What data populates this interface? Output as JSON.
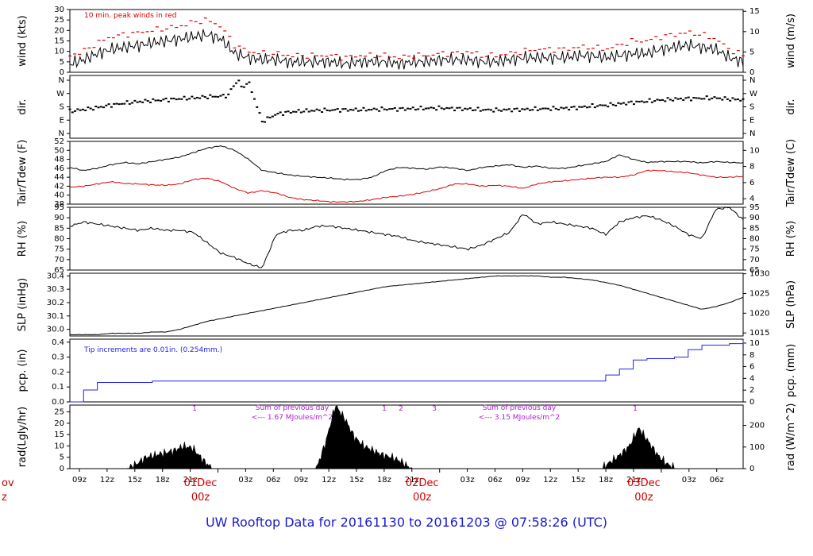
{
  "page": {
    "title": "UW Rooftop Data for 20161130  to  20161203 @ 07:58:26  (UTC)"
  },
  "colors": {
    "black": "#000000",
    "red": "#dd0000",
    "blue": "#2222ee",
    "purple": "#aa22cc",
    "day_red": "#cc0000"
  },
  "x_axis": {
    "hours_tick_labels": [
      "09z",
      "12z",
      "15z",
      "18z",
      "21z",
      "03z",
      "06z",
      "09z",
      "12z",
      "15z",
      "18z",
      "21z",
      "03z",
      "06z",
      "09z",
      "12z",
      "15z",
      "18z",
      "21z",
      "03z",
      "06z"
    ],
    "day_labels": [
      {
        "day": "01Dec",
        "hour": "00z"
      },
      {
        "day": "02Dec",
        "hour": "00z"
      },
      {
        "day": "03Dec",
        "hour": "00z"
      }
    ],
    "cut_left": {
      "day": "ov",
      "hour": "z"
    }
  },
  "chart_data": [
    {
      "type": "line",
      "ylabel": "wind (kts)",
      "ylabel_right": "wind (m/s)",
      "ylim": [
        0,
        30
      ],
      "yticks": [
        0,
        5,
        10,
        15,
        20,
        25,
        30
      ],
      "yticks_right": [
        0,
        5,
        10,
        15
      ],
      "annotation": "10 min. peak winds in red",
      "series": [
        {
          "values": [
            4,
            6,
            9,
            11,
            12,
            13,
            14,
            15,
            16,
            17,
            18,
            16,
            9,
            7,
            6,
            6,
            5,
            5,
            5,
            5,
            4,
            5,
            5,
            5,
            4,
            5,
            5,
            6,
            6,
            6,
            5,
            5,
            6,
            7,
            7,
            7,
            7,
            8,
            8,
            7,
            8,
            9,
            9,
            11,
            12,
            13,
            12,
            11,
            7,
            5
          ]
        },
        {
          "values": [
            8,
            10,
            14,
            17,
            18,
            19,
            20,
            21,
            22,
            24,
            25,
            22,
            13,
            10,
            9,
            9,
            8,
            8,
            8,
            8,
            7,
            8,
            8,
            8,
            7,
            8,
            8,
            9,
            9,
            10,
            8,
            8,
            9,
            10,
            11,
            11,
            11,
            12,
            12,
            11,
            13,
            15,
            15,
            17,
            18,
            19,
            18,
            16,
            11,
            8
          ]
        }
      ]
    },
    {
      "type": "scatter",
      "ylabel": "dir.",
      "ylabel_right": "dir.",
      "yticks": [
        "N",
        "W",
        "S",
        "E",
        "N"
      ],
      "yticks_right": [
        "N",
        "W",
        "S",
        "E",
        "N"
      ],
      "series": [
        {
          "values": [
            150,
            162,
            175,
            192,
            205,
            215,
            222,
            228,
            235,
            240,
            248,
            252,
            265,
            350,
            80,
            130,
            145,
            152,
            156,
            158,
            160,
            160,
            162,
            165,
            165,
            168,
            170,
            172,
            168,
            165,
            160,
            158,
            160,
            162,
            165,
            168,
            170,
            175,
            185,
            190,
            200,
            210,
            218,
            225,
            232,
            236,
            238,
            240,
            232,
            228
          ]
        }
      ]
    },
    {
      "type": "line",
      "ylabel": "Tair/Tdew (F)",
      "ylabel_right": "Tair/Tdew (C)",
      "ylim": [
        38,
        52
      ],
      "yticks": [
        38,
        40,
        42,
        44,
        46,
        48,
        50,
        52
      ],
      "yticks_right": [
        4,
        6,
        8,
        10
      ],
      "series": [
        {
          "values": [
            46.2,
            45.5,
            46.0,
            46.8,
            47.3,
            47.0,
            47.5,
            48.0,
            48.5,
            49.5,
            50.5,
            51.0,
            50.0,
            48.0,
            45.5,
            45.0,
            44.5,
            44.2,
            44.0,
            43.8,
            43.5,
            43.5,
            44.0,
            45.5,
            46.2,
            46.0,
            45.8,
            46.3,
            46.0,
            45.5,
            46.2,
            46.5,
            46.8,
            46.2,
            46.5,
            46.0,
            46.0,
            46.5,
            47.0,
            47.5,
            49.0,
            48.0,
            47.3,
            47.5,
            47.5,
            47.5,
            47.2,
            47.5,
            47.3,
            47.2
          ]
        },
        {
          "values": [
            41.8,
            42.0,
            42.5,
            43.0,
            42.6,
            42.5,
            42.3,
            42.2,
            42.5,
            43.5,
            43.8,
            43.0,
            41.5,
            40.5,
            41.0,
            40.5,
            39.5,
            39.0,
            38.8,
            38.5,
            38.5,
            38.6,
            39.0,
            39.5,
            39.8,
            40.2,
            40.8,
            41.5,
            42.5,
            42.5,
            42.0,
            42.2,
            42.0,
            41.5,
            42.5,
            43.0,
            43.2,
            43.5,
            43.8,
            44.0,
            44.0,
            44.5,
            45.5,
            45.5,
            45.2,
            45.0,
            44.5,
            44.0,
            44.0,
            44.2
          ]
        }
      ]
    },
    {
      "type": "line",
      "ylabel": "RH (%)",
      "ylabel_right": "RH (%)",
      "ylim": [
        65,
        95
      ],
      "yticks": [
        65,
        70,
        75,
        80,
        85,
        90,
        95
      ],
      "yticks_right": [
        65,
        70,
        75,
        80,
        85,
        90,
        95
      ],
      "series": [
        {
          "values": [
            86,
            88,
            87,
            86,
            85,
            84,
            85,
            84,
            84,
            83,
            78,
            73,
            71,
            68,
            66,
            82,
            84,
            84,
            86,
            86,
            85,
            84,
            83,
            82,
            81,
            79,
            78,
            77,
            76,
            75,
            77,
            80,
            83,
            92,
            87,
            88,
            87,
            86,
            85,
            82,
            88,
            90,
            91,
            89,
            86,
            82,
            80,
            94,
            95,
            89
          ]
        }
      ]
    },
    {
      "type": "line",
      "ylabel": "SLP (inHg)",
      "ylabel_right": "SLP (hPa)",
      "ylim": [
        29.95,
        30.42
      ],
      "yticks": [
        30.0,
        30.1,
        30.2,
        30.3,
        30.4
      ],
      "yticks_right": [
        1015,
        1020,
        1025,
        1030
      ],
      "series": [
        {
          "values": [
            29.96,
            29.96,
            29.96,
            29.97,
            29.97,
            29.97,
            29.98,
            29.98,
            30.0,
            30.03,
            30.06,
            30.08,
            30.1,
            30.12,
            30.14,
            30.16,
            30.18,
            30.2,
            30.22,
            30.24,
            30.26,
            30.28,
            30.3,
            30.32,
            30.33,
            30.34,
            30.35,
            30.36,
            30.37,
            30.38,
            30.39,
            30.4,
            30.4,
            30.4,
            30.4,
            30.39,
            30.39,
            30.38,
            30.37,
            30.35,
            30.33,
            30.3,
            30.27,
            30.24,
            30.21,
            30.18,
            30.15,
            30.17,
            30.2,
            30.24
          ]
        }
      ]
    },
    {
      "type": "line",
      "ylabel": "pcp. (in)",
      "ylabel_right": "pcp. (mm)",
      "ylim": [
        0,
        0.42
      ],
      "yticks": [
        0.0,
        0.1,
        0.2,
        0.3,
        0.4
      ],
      "yticks_right": [
        0,
        2,
        4,
        6,
        8,
        10
      ],
      "annotation": "Tip increments are 0.01in. (0.254mm.)",
      "series": [
        {
          "values": [
            0.0,
            0.08,
            0.13,
            0.13,
            0.13,
            0.13,
            0.14,
            0.14,
            0.14,
            0.14,
            0.14,
            0.14,
            0.14,
            0.14,
            0.14,
            0.14,
            0.14,
            0.14,
            0.14,
            0.14,
            0.14,
            0.14,
            0.14,
            0.14,
            0.14,
            0.14,
            0.14,
            0.14,
            0.14,
            0.14,
            0.14,
            0.14,
            0.14,
            0.14,
            0.14,
            0.14,
            0.14,
            0.14,
            0.14,
            0.18,
            0.22,
            0.28,
            0.29,
            0.29,
            0.3,
            0.35,
            0.38,
            0.38,
            0.39,
            0.41
          ]
        }
      ]
    },
    {
      "type": "area",
      "ylabel": "rad(Lgly/hr)",
      "ylabel_right": "rad (W/m^2)",
      "ylim": [
        0,
        28
      ],
      "yticks": [
        0,
        5,
        10,
        15,
        20,
        25
      ],
      "yticks_right": [
        0,
        100,
        200,
        300
      ],
      "annotations": [
        {
          "text": "1"
        },
        {
          "text": "Sum of previous day"
        },
        {
          "text": "<--- 1.67 MJoules/m^2"
        },
        {
          "text": "1"
        },
        {
          "text": "2"
        },
        {
          "text": "3"
        },
        {
          "text": "Sum of previous day"
        },
        {
          "text": "<--- 3.15 MJoules/m^2"
        },
        {
          "text": "1"
        }
      ],
      "series": [
        {
          "values": [
            0,
            0,
            0,
            0,
            0,
            0,
            0,
            2,
            5,
            6,
            7,
            8,
            10,
            9,
            4,
            0,
            0,
            0,
            0,
            0,
            0,
            0,
            0,
            0,
            0,
            0,
            0,
            12,
            28,
            22,
            14,
            10,
            8,
            6,
            5,
            3,
            0,
            0,
            0,
            0,
            0,
            0,
            0,
            0,
            0,
            0,
            0,
            0,
            0,
            0,
            0,
            0,
            0,
            0,
            0,
            0,
            0,
            3,
            6,
            10,
            18,
            12,
            6,
            2,
            0,
            0,
            0,
            0,
            0,
            0,
            0,
            0
          ]
        }
      ]
    }
  ]
}
